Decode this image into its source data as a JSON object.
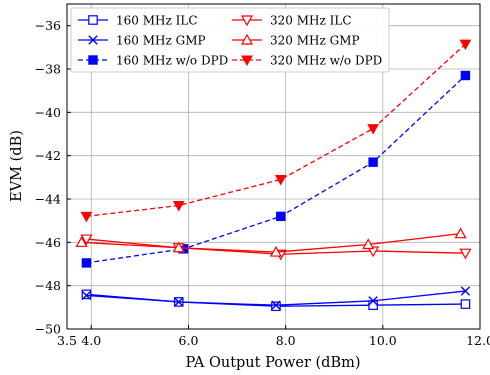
{
  "chart_data": {
    "type": "line",
    "xlabel": "PA Output Power (dBm)",
    "ylabel": "EVM (dB)",
    "xlim": [
      3.5,
      12.0
    ],
    "ylim": [
      -50,
      -35
    ],
    "xticks": [
      3.5,
      4.0,
      6.0,
      8.0,
      10.0,
      12.0
    ],
    "xtick_labels": [
      "3.5",
      "4.0",
      "6.0",
      "8.0",
      "10.0",
      "12.0"
    ],
    "yticks": [
      -50,
      -48,
      -46,
      -44,
      -42,
      -40,
      -38,
      -36
    ],
    "ytick_labels": [
      "−50",
      "−48",
      "−46",
      "−44",
      "−42",
      "−40",
      "−38",
      "−36"
    ],
    "grid": true,
    "legend_placement": "top-left",
    "legend_columns": 2,
    "series": [
      {
        "name": "160 MHz ILC",
        "color": "#0000ff",
        "linestyle": "solid",
        "marker": "open-square",
        "x": [
          3.9,
          5.8,
          7.8,
          9.8,
          11.7
        ],
        "y": [
          -48.4,
          -48.75,
          -48.95,
          -48.9,
          -48.85
        ]
      },
      {
        "name": "160 MHz GMP",
        "color": "#0000ff",
        "linestyle": "solid",
        "marker": "x",
        "x": [
          3.9,
          5.8,
          7.8,
          9.8,
          11.7
        ],
        "y": [
          -48.45,
          -48.75,
          -48.9,
          -48.7,
          -48.25
        ]
      },
      {
        "name": "160 MHz w/o DPD",
        "color": "#0000ff",
        "linestyle": "dashed",
        "marker": "filled-square",
        "x": [
          3.9,
          5.9,
          7.9,
          9.8,
          11.7
        ],
        "y": [
          -46.95,
          -46.3,
          -44.8,
          -42.3,
          -38.3
        ]
      },
      {
        "name": "320 MHz ILC",
        "color": "#ff0000",
        "linestyle": "solid",
        "marker": "open-triangle-down",
        "x": [
          3.9,
          5.8,
          7.9,
          9.8,
          11.7
        ],
        "y": [
          -45.85,
          -46.25,
          -46.55,
          -46.4,
          -46.5
        ]
      },
      {
        "name": "320 MHz GMP",
        "color": "#ff0000",
        "linestyle": "solid",
        "marker": "open-triangle-up",
        "x": [
          3.8,
          5.8,
          7.8,
          9.7,
          11.6
        ],
        "y": [
          -46.0,
          -46.25,
          -46.45,
          -46.1,
          -45.6
        ]
      },
      {
        "name": "320 MHz w/o DPD",
        "color": "#ff0000",
        "linestyle": "dashed",
        "marker": "filled-triangle-down",
        "x": [
          3.9,
          5.8,
          7.9,
          9.8,
          11.7
        ],
        "y": [
          -44.8,
          -44.3,
          -43.1,
          -40.75,
          -36.85
        ]
      }
    ]
  }
}
